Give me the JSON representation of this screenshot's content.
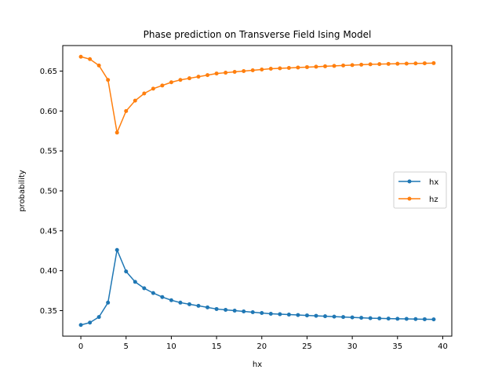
{
  "chart_data": {
    "type": "line",
    "title": "Phase prediction on Transverse Field Ising Model",
    "xlabel": "hx",
    "ylabel": "probability",
    "xlim": [
      -2,
      41
    ],
    "ylim": [
      0.318,
      0.682
    ],
    "xticks": [
      0,
      5,
      10,
      15,
      20,
      25,
      30,
      35,
      40
    ],
    "yticks": [
      0.35,
      0.4,
      0.45,
      0.5,
      0.55,
      0.6,
      0.65
    ],
    "ytick_labels": [
      "0.35",
      "0.40",
      "0.45",
      "0.50",
      "0.55",
      "0.60",
      "0.65"
    ],
    "legend_position": "center-right",
    "grid": false,
    "x": [
      0,
      1,
      2,
      3,
      4,
      5,
      6,
      7,
      8,
      9,
      10,
      11,
      12,
      13,
      14,
      15,
      16,
      17,
      18,
      19,
      20,
      21,
      22,
      23,
      24,
      25,
      26,
      27,
      28,
      29,
      30,
      31,
      32,
      33,
      34,
      35,
      36,
      37,
      38,
      39
    ],
    "series": [
      {
        "name": "hx",
        "color": "#1f77b4",
        "values": [
          0.332,
          0.335,
          0.342,
          0.36,
          0.426,
          0.399,
          0.386,
          0.378,
          0.372,
          0.367,
          0.363,
          0.36,
          0.358,
          0.356,
          0.354,
          0.352,
          0.351,
          0.35,
          0.349,
          0.348,
          0.347,
          0.346,
          0.3455,
          0.345,
          0.3445,
          0.344,
          0.3435,
          0.343,
          0.3425,
          0.342,
          0.3415,
          0.341,
          0.3405,
          0.3403,
          0.34,
          0.3398,
          0.3396,
          0.3394,
          0.3392,
          0.339
        ]
      },
      {
        "name": "hz",
        "color": "#ff7f0e",
        "values": [
          0.668,
          0.665,
          0.657,
          0.639,
          0.573,
          0.6,
          0.613,
          0.622,
          0.628,
          0.632,
          0.636,
          0.639,
          0.641,
          0.643,
          0.645,
          0.647,
          0.648,
          0.649,
          0.65,
          0.651,
          0.652,
          0.653,
          0.6535,
          0.654,
          0.6545,
          0.655,
          0.6555,
          0.656,
          0.6565,
          0.657,
          0.6575,
          0.658,
          0.6585,
          0.6588,
          0.659,
          0.6592,
          0.6594,
          0.6596,
          0.6598,
          0.66
        ]
      }
    ]
  }
}
